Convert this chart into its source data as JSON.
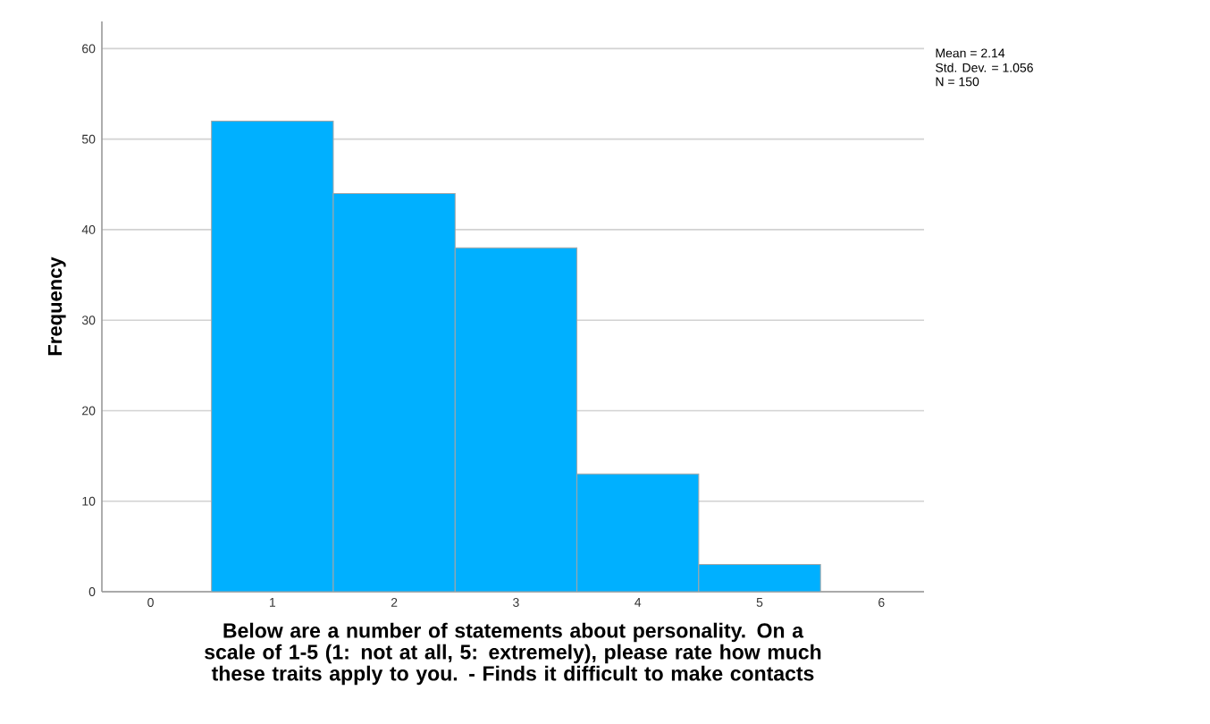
{
  "chart_data": {
    "type": "histogram",
    "xlabel": "Below are a number of statements about personality. On a scale of 1-5 (1: not at all, 5: extremely), please rate how much these traits apply to you. - Finds it difficult to make contacts",
    "ylabel": "Frequency",
    "bins": [
      0.5,
      1.5,
      2.5,
      3.5,
      4.5,
      5.5
    ],
    "values": [
      52,
      44,
      38,
      13,
      3
    ],
    "color": "#00b0ff",
    "xlim": [
      -0.4,
      6.35
    ],
    "ylim": [
      0,
      63
    ],
    "xticks": [
      0,
      1,
      2,
      3,
      4,
      5,
      6
    ],
    "yticks": [
      0,
      10,
      20,
      30,
      40,
      50,
      60
    ],
    "grid": "y",
    "annotations": [
      "Mean = 2.14",
      "Std. Dev. = 1.056",
      "N = 150"
    ]
  }
}
